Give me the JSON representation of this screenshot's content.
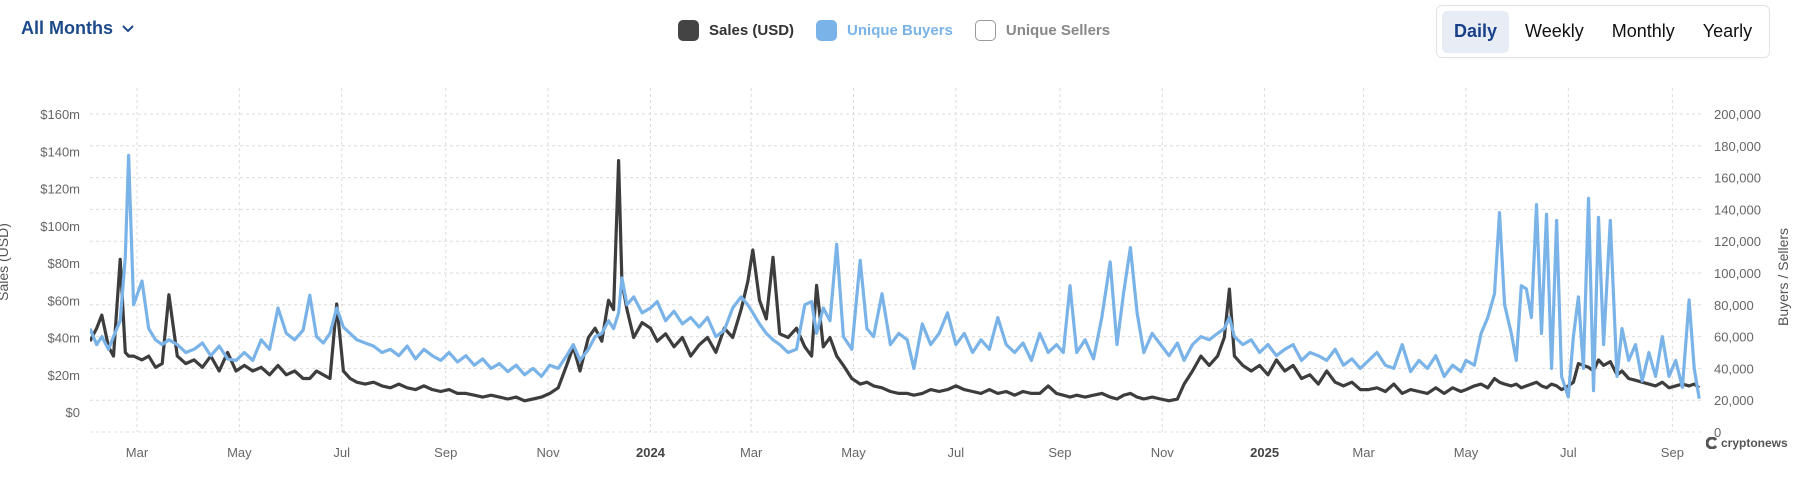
{
  "header": {
    "range_label": "All Months",
    "range_icon": "chevron-down-icon",
    "legend": [
      {
        "label": "Sales (USD)",
        "color": "#3d3d3d",
        "active": true
      },
      {
        "label": "Unique Buyers",
        "color": "#7ab3e8",
        "active": true
      },
      {
        "label": "Unique Sellers",
        "color": "#888888",
        "active": false
      }
    ],
    "periods": [
      "Daily",
      "Weekly",
      "Monthly",
      "Yearly"
    ],
    "active_period": "Daily"
  },
  "watermark": "cryptonews",
  "chart_data": {
    "type": "line",
    "ylabel_left": "Sales (USD)",
    "ylabel_right": "Buyers / Sellers",
    "y_left_ticks": [
      "$0",
      "$20m",
      "$40m",
      "$60m",
      "$80m",
      "$100m",
      "$120m",
      "$140m",
      "$160m"
    ],
    "y_left_range": [
      0,
      160
    ],
    "y_left_unit": "USD millions",
    "y_right_ticks": [
      "0",
      "20,000",
      "40,000",
      "60,000",
      "80,000",
      "100,000",
      "120,000",
      "140,000",
      "160,000",
      "180,000",
      "200,000"
    ],
    "y_right_range": [
      0,
      200000
    ],
    "x_range": [
      "2023-02-01",
      "2025-09-17"
    ],
    "x_ticks": [
      {
        "date": "2023-03-01",
        "label": "Mar"
      },
      {
        "date": "2023-05-01",
        "label": "May"
      },
      {
        "date": "2023-07-01",
        "label": "Jul"
      },
      {
        "date": "2023-09-01",
        "label": "Sep"
      },
      {
        "date": "2023-11-01",
        "label": "Nov"
      },
      {
        "date": "2024-01-01",
        "label": "2024",
        "bold": true
      },
      {
        "date": "2024-03-01",
        "label": "Mar"
      },
      {
        "date": "2024-05-01",
        "label": "May"
      },
      {
        "date": "2024-07-01",
        "label": "Jul"
      },
      {
        "date": "2024-09-01",
        "label": "Sep"
      },
      {
        "date": "2024-11-01",
        "label": "Nov"
      },
      {
        "date": "2025-01-01",
        "label": "2025",
        "bold": true
      },
      {
        "date": "2025-03-01",
        "label": "Mar"
      },
      {
        "date": "2025-05-01",
        "label": "May"
      },
      {
        "date": "2025-07-01",
        "label": "Jul"
      },
      {
        "date": "2025-09-01",
        "label": "Sep"
      }
    ],
    "grid": true,
    "legend_position": "top",
    "points": [
      [
        "2023-02-01",
        38,
        65000
      ],
      [
        "2023-02-05",
        45,
        55000
      ],
      [
        "2023-02-08",
        52,
        60000
      ],
      [
        "2023-02-12",
        35,
        52000
      ],
      [
        "2023-02-15",
        30,
        60000
      ],
      [
        "2023-02-19",
        82,
        70000
      ],
      [
        "2023-02-22",
        32,
        110000
      ],
      [
        "2023-02-24",
        30,
        174000
      ],
      [
        "2023-02-27",
        30,
        80000
      ],
      [
        "2023-03-04",
        28,
        95000
      ],
      [
        "2023-03-08",
        30,
        65000
      ],
      [
        "2023-03-12",
        24,
        58000
      ],
      [
        "2023-03-16",
        26,
        55000
      ],
      [
        "2023-03-20",
        63,
        58000
      ],
      [
        "2023-03-25",
        30,
        55000
      ],
      [
        "2023-03-30",
        26,
        50000
      ],
      [
        "2023-04-04",
        28,
        52000
      ],
      [
        "2023-04-09",
        24,
        56000
      ],
      [
        "2023-04-14",
        30,
        48000
      ],
      [
        "2023-04-19",
        22,
        54000
      ],
      [
        "2023-04-24",
        32,
        46000
      ],
      [
        "2023-04-29",
        22,
        45000
      ],
      [
        "2023-05-04",
        25,
        50000
      ],
      [
        "2023-05-09",
        22,
        45000
      ],
      [
        "2023-05-14",
        24,
        58000
      ],
      [
        "2023-05-19",
        20,
        52000
      ],
      [
        "2023-05-24",
        25,
        78000
      ],
      [
        "2023-05-29",
        20,
        62000
      ],
      [
        "2023-06-03",
        22,
        58000
      ],
      [
        "2023-06-08",
        18,
        64000
      ],
      [
        "2023-06-12",
        18,
        86000
      ],
      [
        "2023-06-16",
        22,
        60000
      ],
      [
        "2023-06-20",
        20,
        56000
      ],
      [
        "2023-06-24",
        18,
        62000
      ],
      [
        "2023-06-28",
        58,
        78000
      ],
      [
        "2023-07-02",
        22,
        66000
      ],
      [
        "2023-07-06",
        18,
        62000
      ],
      [
        "2023-07-10",
        16,
        58000
      ],
      [
        "2023-07-15",
        15,
        56000
      ],
      [
        "2023-07-20",
        16,
        54000
      ],
      [
        "2023-07-25",
        14,
        50000
      ],
      [
        "2023-07-30",
        13,
        52000
      ],
      [
        "2023-08-04",
        15,
        48000
      ],
      [
        "2023-08-09",
        13,
        54000
      ],
      [
        "2023-08-14",
        12,
        46000
      ],
      [
        "2023-08-19",
        14,
        52000
      ],
      [
        "2023-08-24",
        12,
        48000
      ],
      [
        "2023-08-29",
        11,
        45000
      ],
      [
        "2023-09-03",
        12,
        50000
      ],
      [
        "2023-09-08",
        10,
        44000
      ],
      [
        "2023-09-13",
        10,
        48000
      ],
      [
        "2023-09-18",
        9,
        42000
      ],
      [
        "2023-09-23",
        8,
        46000
      ],
      [
        "2023-09-28",
        9,
        40000
      ],
      [
        "2023-10-03",
        8,
        43000
      ],
      [
        "2023-10-08",
        7,
        38000
      ],
      [
        "2023-10-13",
        8,
        42000
      ],
      [
        "2023-10-18",
        6,
        36000
      ],
      [
        "2023-10-23",
        7,
        40000
      ],
      [
        "2023-10-28",
        8,
        35000
      ],
      [
        "2023-11-02",
        10,
        42000
      ],
      [
        "2023-11-07",
        13,
        40000
      ],
      [
        "2023-11-12",
        25,
        48000
      ],
      [
        "2023-11-16",
        35,
        55000
      ],
      [
        "2023-11-20",
        22,
        45000
      ],
      [
        "2023-11-25",
        40,
        52000
      ],
      [
        "2023-11-29",
        45,
        60000
      ],
      [
        "2023-12-03",
        38,
        62000
      ],
      [
        "2023-12-07",
        60,
        70000
      ],
      [
        "2023-12-10",
        55,
        65000
      ],
      [
        "2023-12-13",
        135,
        75000
      ],
      [
        "2023-12-15",
        70,
        97000
      ],
      [
        "2023-12-18",
        55,
        80000
      ],
      [
        "2023-12-22",
        40,
        85000
      ],
      [
        "2023-12-27",
        48,
        75000
      ],
      [
        "2024-01-01",
        45,
        78000
      ],
      [
        "2024-01-05",
        38,
        82000
      ],
      [
        "2024-01-10",
        42,
        70000
      ],
      [
        "2024-01-15",
        35,
        76000
      ],
      [
        "2024-01-20",
        40,
        68000
      ],
      [
        "2024-01-25",
        30,
        72000
      ],
      [
        "2024-01-30",
        36,
        66000
      ],
      [
        "2024-02-04",
        40,
        72000
      ],
      [
        "2024-02-09",
        32,
        60000
      ],
      [
        "2024-02-14",
        45,
        64000
      ],
      [
        "2024-02-19",
        40,
        78000
      ],
      [
        "2024-02-24",
        55,
        85000
      ],
      [
        "2024-02-28",
        70,
        80000
      ],
      [
        "2024-03-02",
        87,
        75000
      ],
      [
        "2024-03-06",
        60,
        68000
      ],
      [
        "2024-03-10",
        50,
        62000
      ],
      [
        "2024-03-14",
        83,
        58000
      ],
      [
        "2024-03-18",
        42,
        55000
      ],
      [
        "2024-03-23",
        40,
        50000
      ],
      [
        "2024-03-28",
        45,
        52000
      ],
      [
        "2024-04-02",
        35,
        80000
      ],
      [
        "2024-04-06",
        30,
        82000
      ],
      [
        "2024-04-09",
        68,
        62000
      ],
      [
        "2024-04-13",
        35,
        78000
      ],
      [
        "2024-04-17",
        40,
        70000
      ],
      [
        "2024-04-21",
        30,
        118000
      ],
      [
        "2024-04-25",
        25,
        60000
      ],
      [
        "2024-04-30",
        18,
        52000
      ],
      [
        "2024-05-05",
        15,
        108000
      ],
      [
        "2024-05-09",
        16,
        65000
      ],
      [
        "2024-05-13",
        14,
        60000
      ],
      [
        "2024-05-18",
        13,
        87000
      ],
      [
        "2024-05-23",
        11,
        55000
      ],
      [
        "2024-05-28",
        10,
        62000
      ],
      [
        "2024-06-02",
        10,
        58000
      ],
      [
        "2024-06-06",
        9,
        40000
      ],
      [
        "2024-06-11",
        10,
        68000
      ],
      [
        "2024-06-16",
        12,
        55000
      ],
      [
        "2024-06-21",
        11,
        62000
      ],
      [
        "2024-06-26",
        12,
        75000
      ],
      [
        "2024-07-01",
        14,
        55000
      ],
      [
        "2024-07-06",
        12,
        62000
      ],
      [
        "2024-07-11",
        11,
        50000
      ],
      [
        "2024-07-16",
        10,
        58000
      ],
      [
        "2024-07-21",
        12,
        52000
      ],
      [
        "2024-07-26",
        10,
        72000
      ],
      [
        "2024-07-31",
        11,
        55000
      ],
      [
        "2024-08-05",
        9,
        50000
      ],
      [
        "2024-08-10",
        11,
        56000
      ],
      [
        "2024-08-15",
        10,
        45000
      ],
      [
        "2024-08-20",
        10,
        62000
      ],
      [
        "2024-08-25",
        14,
        50000
      ],
      [
        "2024-08-30",
        10,
        55000
      ],
      [
        "2024-09-03",
        9,
        50000
      ],
      [
        "2024-09-07",
        8,
        92000
      ],
      [
        "2024-09-11",
        9,
        50000
      ],
      [
        "2024-09-16",
        8,
        58000
      ],
      [
        "2024-09-21",
        9,
        46000
      ],
      [
        "2024-09-26",
        10,
        72000
      ],
      [
        "2024-10-01",
        8,
        107000
      ],
      [
        "2024-10-05",
        7,
        55000
      ],
      [
        "2024-10-09",
        9,
        88000
      ],
      [
        "2024-10-13",
        10,
        116000
      ],
      [
        "2024-10-17",
        8,
        75000
      ],
      [
        "2024-10-21",
        7,
        50000
      ],
      [
        "2024-10-26",
        8,
        62000
      ],
      [
        "2024-10-31",
        7,
        55000
      ],
      [
        "2024-11-05",
        6,
        48000
      ],
      [
        "2024-11-10",
        7,
        56000
      ],
      [
        "2024-11-14",
        15,
        45000
      ],
      [
        "2024-11-19",
        22,
        55000
      ],
      [
        "2024-11-24",
        30,
        60000
      ],
      [
        "2024-11-29",
        25,
        58000
      ],
      [
        "2024-12-04",
        30,
        62000
      ],
      [
        "2024-12-08",
        40,
        65000
      ],
      [
        "2024-12-11",
        66,
        72000
      ],
      [
        "2024-12-14",
        30,
        60000
      ],
      [
        "2024-12-19",
        25,
        55000
      ],
      [
        "2024-12-24",
        22,
        58000
      ],
      [
        "2024-12-29",
        25,
        50000
      ],
      [
        "2025-01-03",
        20,
        55000
      ],
      [
        "2025-01-08",
        28,
        48000
      ],
      [
        "2025-01-13",
        22,
        52000
      ],
      [
        "2025-01-18",
        25,
        55000
      ],
      [
        "2025-01-23",
        18,
        45000
      ],
      [
        "2025-01-28",
        20,
        50000
      ],
      [
        "2025-02-02",
        15,
        48000
      ],
      [
        "2025-02-07",
        22,
        45000
      ],
      [
        "2025-02-12",
        16,
        52000
      ],
      [
        "2025-02-17",
        14,
        42000
      ],
      [
        "2025-02-22",
        16,
        46000
      ],
      [
        "2025-02-27",
        12,
        40000
      ],
      [
        "2025-03-04",
        12,
        45000
      ],
      [
        "2025-03-09",
        13,
        50000
      ],
      [
        "2025-03-14",
        11,
        42000
      ],
      [
        "2025-03-19",
        15,
        40000
      ],
      [
        "2025-03-24",
        10,
        55000
      ],
      [
        "2025-03-29",
        12,
        38000
      ],
      [
        "2025-04-03",
        11,
        45000
      ],
      [
        "2025-04-08",
        10,
        40000
      ],
      [
        "2025-04-13",
        13,
        48000
      ],
      [
        "2025-04-18",
        10,
        35000
      ],
      [
        "2025-04-23",
        13,
        42000
      ],
      [
        "2025-04-28",
        11,
        38000
      ],
      [
        "2025-05-01",
        12,
        45000
      ],
      [
        "2025-05-06",
        14,
        42000
      ],
      [
        "2025-05-10",
        15,
        62000
      ],
      [
        "2025-05-14",
        13,
        72000
      ],
      [
        "2025-05-18",
        18,
        87000
      ],
      [
        "2025-05-21",
        16,
        138000
      ],
      [
        "2025-05-24",
        15,
        80000
      ],
      [
        "2025-05-28",
        14,
        62000
      ],
      [
        "2025-05-31",
        15,
        45000
      ],
      [
        "2025-06-03",
        13,
        92000
      ],
      [
        "2025-06-06",
        14,
        90000
      ],
      [
        "2025-06-09",
        15,
        72000
      ],
      [
        "2025-06-12",
        16,
        143000
      ],
      [
        "2025-06-15",
        14,
        62000
      ],
      [
        "2025-06-18",
        13,
        137000
      ],
      [
        "2025-06-21",
        15,
        40000
      ],
      [
        "2025-06-24",
        14,
        133000
      ],
      [
        "2025-06-27",
        12,
        35000
      ],
      [
        "2025-07-01",
        14,
        22000
      ],
      [
        "2025-07-04",
        16,
        60000
      ],
      [
        "2025-07-07",
        26,
        85000
      ],
      [
        "2025-07-10",
        25,
        40000
      ],
      [
        "2025-07-13",
        24,
        147000
      ],
      [
        "2025-07-16",
        22,
        26000
      ],
      [
        "2025-07-19",
        28,
        135000
      ],
      [
        "2025-07-22",
        25,
        55000
      ],
      [
        "2025-07-26",
        27,
        133000
      ],
      [
        "2025-07-30",
        20,
        35000
      ],
      [
        "2025-08-02",
        22,
        65000
      ],
      [
        "2025-08-06",
        18,
        45000
      ],
      [
        "2025-08-10",
        17,
        55000
      ],
      [
        "2025-08-14",
        16,
        32000
      ],
      [
        "2025-08-18",
        15,
        50000
      ],
      [
        "2025-08-22",
        14,
        35000
      ],
      [
        "2025-08-26",
        16,
        60000
      ],
      [
        "2025-08-30",
        13,
        35000
      ],
      [
        "2025-09-03",
        14,
        45000
      ],
      [
        "2025-09-07",
        15,
        28000
      ],
      [
        "2025-09-11",
        14,
        83000
      ],
      [
        "2025-09-14",
        15,
        40000
      ],
      [
        "2025-09-17",
        13,
        21000
      ]
    ],
    "series": [
      {
        "name": "Sales (USD)",
        "column": 1,
        "axis": "left",
        "color": "#3d3d3d"
      },
      {
        "name": "Unique Buyers",
        "column": 2,
        "axis": "right",
        "color": "#7ab3e8"
      }
    ]
  }
}
